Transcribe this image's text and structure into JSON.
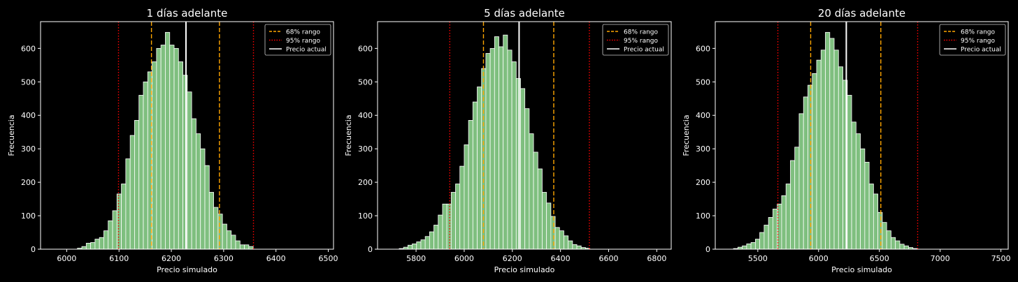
{
  "chart_data": [
    {
      "type": "bar",
      "title": "1 días adelante",
      "xlabel": "Precio simulado",
      "ylabel": "Frecuencia",
      "xlim": [
        5950,
        6510
      ],
      "ylim": [
        0,
        680
      ],
      "xticks": [
        6000,
        6100,
        6200,
        6300,
        6400,
        6500
      ],
      "yticks": [
        0,
        100,
        200,
        300,
        400,
        500,
        600
      ],
      "bin_start": 6020.5,
      "bin_width": 8.4,
      "values": [
        3,
        8,
        18,
        20,
        30,
        35,
        55,
        85,
        115,
        165,
        195,
        270,
        340,
        385,
        460,
        500,
        530,
        560,
        600,
        610,
        648,
        610,
        600,
        560,
        520,
        470,
        390,
        345,
        300,
        250,
        170,
        125,
        105,
        75,
        55,
        42,
        25,
        13,
        13,
        8
      ],
      "current_price": 6228,
      "range_68": [
        6162,
        6292
      ],
      "range_95": [
        6099,
        6357
      ],
      "legend": [
        "68% rango",
        "95% rango",
        "Precio actual"
      ],
      "legend_position": "top-right",
      "colors": {
        "bars": "#7fbf7f",
        "bar_edge": "#ffffff",
        "range_68": "#ffa500",
        "range_95": "#ff0000",
        "current": "#ffffff",
        "background": "#000000"
      },
      "grid": false
    },
    {
      "type": "bar",
      "title": "5 días adelante",
      "xlabel": "Precio simulado",
      "ylabel": "Frecuencia",
      "xlim": [
        5640,
        6860
      ],
      "ylim": [
        0,
        680
      ],
      "xticks": [
        5800,
        6000,
        6200,
        6400,
        6600,
        6800
      ],
      "yticks": [
        0,
        100,
        200,
        300,
        400,
        500,
        600
      ],
      "bin_start": 5730,
      "bin_width": 18,
      "values": [
        2,
        6,
        12,
        16,
        22,
        28,
        38,
        52,
        72,
        102,
        135,
        135,
        170,
        195,
        248,
        312,
        385,
        440,
        485,
        540,
        585,
        600,
        635,
        605,
        640,
        595,
        560,
        510,
        480,
        420,
        345,
        290,
        240,
        170,
        138,
        98,
        65,
        55,
        40,
        25,
        14,
        10,
        5,
        3
      ],
      "current_price": 6228,
      "range_68": [
        6080,
        6372
      ],
      "range_95": [
        5940,
        6520
      ],
      "legend": [
        "68% rango",
        "95% rango",
        "Precio actual"
      ],
      "legend_position": "top-right",
      "colors": {
        "bars": "#7fbf7f",
        "bar_edge": "#ffffff",
        "range_68": "#ffa500",
        "range_95": "#ff0000",
        "current": "#ffffff",
        "background": "#000000"
      },
      "grid": false
    },
    {
      "type": "bar",
      "title": "20 días adelante",
      "xlabel": "Precio simulado",
      "ylabel": "Frecuencia",
      "xlim": [
        5150,
        7560
      ],
      "ylim": [
        0,
        680
      ],
      "xticks": [
        5500,
        6000,
        6500,
        7000,
        7500
      ],
      "yticks": [
        0,
        100,
        200,
        300,
        400,
        500,
        600
      ],
      "bin_start": 5300,
      "bin_width": 36,
      "values": [
        2,
        6,
        10,
        16,
        20,
        30,
        50,
        72,
        95,
        120,
        135,
        160,
        195,
        265,
        305,
        405,
        455,
        490,
        525,
        565,
        595,
        648,
        630,
        595,
        545,
        505,
        460,
        380,
        345,
        300,
        260,
        195,
        165,
        110,
        80,
        55,
        35,
        25,
        15,
        10,
        5,
        2
      ],
      "current_price": 6228,
      "range_68": [
        5935,
        6512
      ],
      "range_95": [
        5665,
        6815
      ],
      "legend": [
        "68% rango",
        "95% rango",
        "Precio actual"
      ],
      "legend_position": "top-right",
      "colors": {
        "bars": "#7fbf7f",
        "bar_edge": "#ffffff",
        "range_68": "#ffa500",
        "range_95": "#ff0000",
        "current": "#ffffff",
        "background": "#000000"
      },
      "grid": false
    }
  ]
}
